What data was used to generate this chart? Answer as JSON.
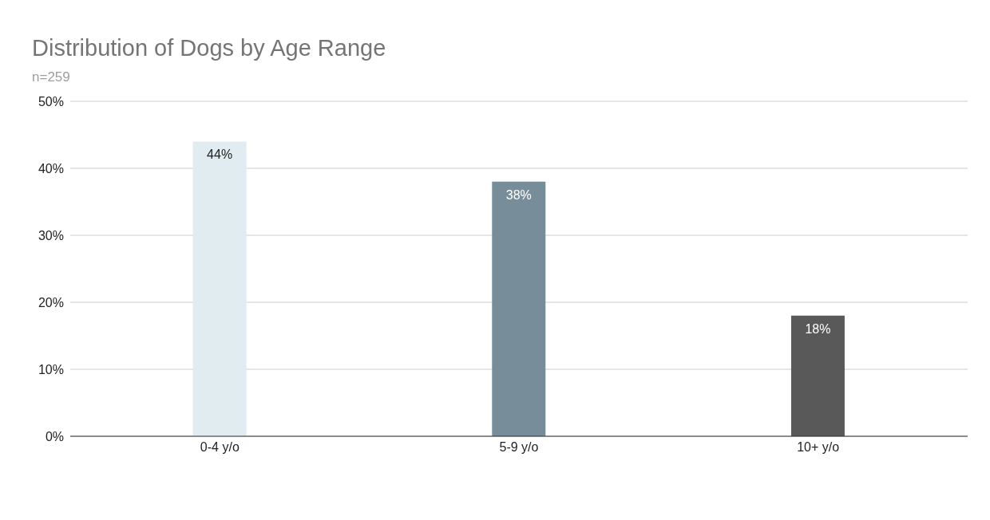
{
  "chart_data": {
    "type": "bar",
    "title": "Distribution of Dogs by Age Range",
    "subtitle": "n=259",
    "categories": [
      "0-4 y/o",
      "5-9 y/o",
      "10+ y/o"
    ],
    "values": [
      44,
      38,
      18
    ],
    "colors": [
      "#e1ecf0",
      "#778d99",
      "#595959"
    ],
    "value_labels": [
      "44%",
      "38%",
      "18%"
    ],
    "ylim": [
      0,
      50
    ],
    "yticks": [
      {
        "value": 0,
        "label": "0%"
      },
      {
        "value": 10,
        "label": "10%"
      },
      {
        "value": 20,
        "label": "20%"
      },
      {
        "value": 30,
        "label": "30%"
      },
      {
        "value": 40,
        "label": "40%"
      },
      {
        "value": 50,
        "label": "50%"
      }
    ],
    "grid": "y",
    "legend": false
  }
}
